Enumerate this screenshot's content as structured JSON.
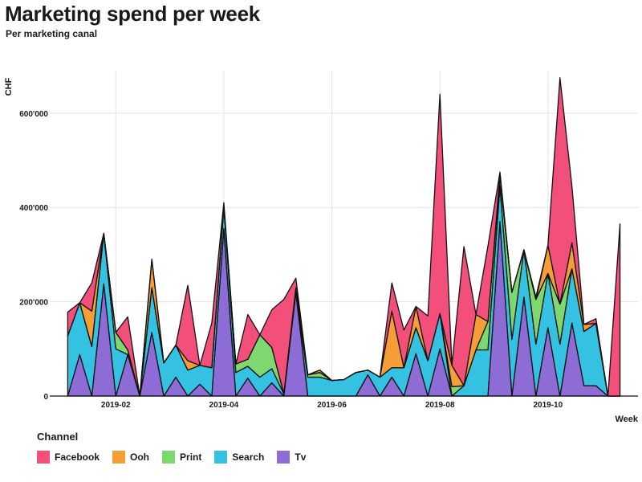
{
  "chart_data": {
    "type": "area",
    "stacked": true,
    "title": "Marketing spend per week",
    "subtitle": "Per marketing canal",
    "xlabel": "Week",
    "ylabel": "CHF",
    "ylim": [
      0,
      690000
    ],
    "yticks": [
      {
        "value": 0,
        "label": "0"
      },
      {
        "value": 200000,
        "label": "200'000"
      },
      {
        "value": 400000,
        "label": "400'000"
      },
      {
        "value": 600000,
        "label": "600'000"
      }
    ],
    "xticks": [
      {
        "week": 5,
        "label": "2019-02"
      },
      {
        "week": 14,
        "label": "2019-04"
      },
      {
        "week": 23,
        "label": "2019-06"
      },
      {
        "week": 32,
        "label": "2019-08"
      },
      {
        "week": 41,
        "label": "2019-10"
      }
    ],
    "xlim": [
      -0.5,
      48.5
    ],
    "grid": true,
    "legend_title": "Channel",
    "x": [
      1,
      2,
      3,
      4,
      5,
      6,
      7,
      8,
      9,
      10,
      11,
      12,
      13,
      14,
      15,
      16,
      17,
      18,
      19,
      20,
      21,
      22,
      23,
      24,
      25,
      26,
      27,
      28,
      29,
      30,
      31,
      32,
      33,
      34,
      35,
      36,
      37,
      38,
      39,
      40,
      41,
      42,
      43,
      44,
      45,
      46,
      47
    ],
    "series": [
      {
        "name": "Tv",
        "color": "#8e6cd6",
        "values": [
          0,
          88000,
          0,
          238000,
          0,
          88000,
          0,
          135000,
          0,
          40000,
          0,
          25000,
          0,
          355000,
          0,
          38000,
          0,
          28000,
          0,
          220000,
          0,
          0,
          0,
          0,
          0,
          45000,
          0,
          40000,
          0,
          90000,
          0,
          100000,
          0,
          0,
          0,
          0,
          370000,
          0,
          210000,
          0,
          145000,
          0,
          155000,
          22000,
          22000,
          0,
          0
        ]
      },
      {
        "name": "Search",
        "color": "#35c1e1",
        "values": [
          128000,
          110000,
          105000,
          107000,
          100000,
          0,
          0,
          95000,
          70000,
          68000,
          55000,
          40000,
          60000,
          45000,
          50000,
          25000,
          40000,
          30000,
          5000,
          0,
          40000,
          40000,
          33000,
          35000,
          50000,
          10000,
          40000,
          20000,
          60000,
          55000,
          75000,
          75000,
          0,
          22000,
          98000,
          98000,
          75000,
          120000,
          100000,
          110000,
          115000,
          110000,
          115000,
          115000,
          132000,
          0,
          0
        ]
      },
      {
        "name": "Print",
        "color": "#7fd86f",
        "values": [
          0,
          0,
          0,
          0,
          35000,
          10000,
          0,
          0,
          0,
          0,
          0,
          0,
          0,
          0,
          18000,
          15000,
          90000,
          45000,
          0,
          5000,
          5000,
          10000,
          0,
          0,
          0,
          0,
          0,
          0,
          0,
          0,
          0,
          0,
          20000,
          0,
          0,
          60000,
          20000,
          100000,
          0,
          95000,
          0,
          85000,
          0,
          0,
          0,
          0,
          0
        ]
      },
      {
        "name": "Ooh",
        "color": "#f59d36",
        "values": [
          0,
          0,
          75000,
          0,
          0,
          0,
          0,
          60000,
          0,
          0,
          20000,
          0,
          0,
          0,
          0,
          0,
          0,
          0,
          0,
          5000,
          0,
          5000,
          0,
          0,
          0,
          0,
          0,
          120000,
          0,
          45000,
          0,
          0,
          45000,
          0,
          75000,
          0,
          5000,
          0,
          0,
          0,
          60000,
          0,
          55000,
          15000,
          0,
          0,
          0
        ]
      },
      {
        "name": "Facebook",
        "color": "#f2507b",
        "values": [
          50000,
          0,
          60000,
          0,
          0,
          70000,
          0,
          0,
          0,
          0,
          160000,
          0,
          95000,
          10000,
          0,
          95000,
          0,
          80000,
          200000,
          20000,
          0,
          0,
          0,
          0,
          0,
          0,
          0,
          60000,
          80000,
          0,
          95000,
          465000,
          0,
          295000,
          0,
          160000,
          5000,
          0,
          0,
          5000,
          0,
          480000,
          120000,
          0,
          10000,
          0,
          365000
        ]
      }
    ]
  }
}
